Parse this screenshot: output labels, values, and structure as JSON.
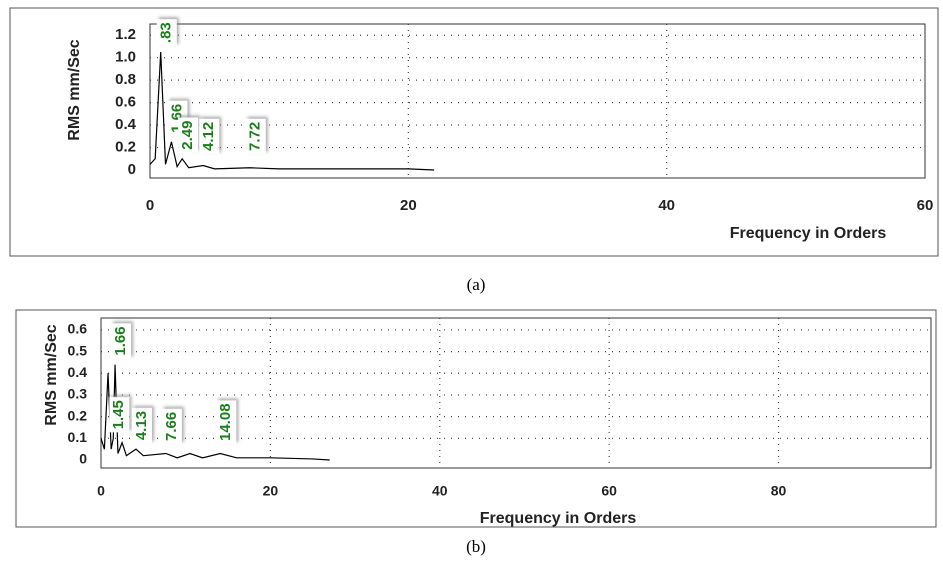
{
  "chart_data": [
    {
      "type": "line",
      "caption": "(a)",
      "xlabel": "Frequency in Orders",
      "ylabel": "RMS mm/Sec",
      "color": "#000000",
      "grid": true,
      "x": [
        0,
        0.4,
        0.83,
        1.2,
        1.66,
        2.1,
        2.49,
        3,
        4.12,
        5,
        7.72,
        10,
        15,
        20,
        22
      ],
      "values": [
        0.05,
        0.1,
        1.05,
        0.05,
        0.25,
        0.03,
        0.1,
        0.02,
        0.04,
        0.01,
        0.02,
        0.01,
        0.01,
        0.01,
        0
      ],
      "annotations": [
        {
          "x": 0.83,
          "text": ".83"
        },
        {
          "x": 1.66,
          "text": "1.66"
        },
        {
          "x": 2.49,
          "text": "2.49"
        },
        {
          "x": 4.12,
          "text": "4.12"
        },
        {
          "x": 7.72,
          "text": "7.72"
        }
      ],
      "xlim": [
        0,
        60
      ],
      "xticks": [
        0,
        20,
        40,
        60
      ],
      "ylim": [
        0,
        1.3
      ],
      "yticks": [
        0,
        0.2,
        0.4,
        0.6,
        0.8,
        {
          "value": 1,
          "label": "1.0"
        },
        1.2
      ]
    },
    {
      "type": "line",
      "caption": "(b)",
      "xlabel": "Frequency in Orders",
      "ylabel": "RMS mm/Sec",
      "color": "#000000",
      "grid": true,
      "x": [
        0,
        0.4,
        0.83,
        1.2,
        1.45,
        1.66,
        2,
        2.49,
        3,
        4.13,
        5,
        7.66,
        9,
        10.5,
        12,
        14.08,
        16,
        20,
        25,
        27
      ],
      "values": [
        0.1,
        0.05,
        0.4,
        0.05,
        0.1,
        0.44,
        0.03,
        0.08,
        0.02,
        0.05,
        0.02,
        0.03,
        0.01,
        0.03,
        0.01,
        0.03,
        0.01,
        0.01,
        0.005,
        0
      ],
      "annotations": [
        {
          "x": 1.45,
          "text": "1.45"
        },
        {
          "x": 1.66,
          "text": "1.66"
        },
        {
          "x": 4.13,
          "text": "4.13"
        },
        {
          "x": 7.66,
          "text": "7.66"
        },
        {
          "x": 14.08,
          "text": "14.08"
        }
      ],
      "xlim": [
        0,
        98
      ],
      "xticks": [
        0,
        20,
        40,
        60,
        80
      ],
      "ylim": [
        0,
        0.655
      ],
      "yticks": [
        0,
        0.1,
        0.2,
        0.3,
        0.4,
        0.5,
        0.6
      ]
    }
  ]
}
